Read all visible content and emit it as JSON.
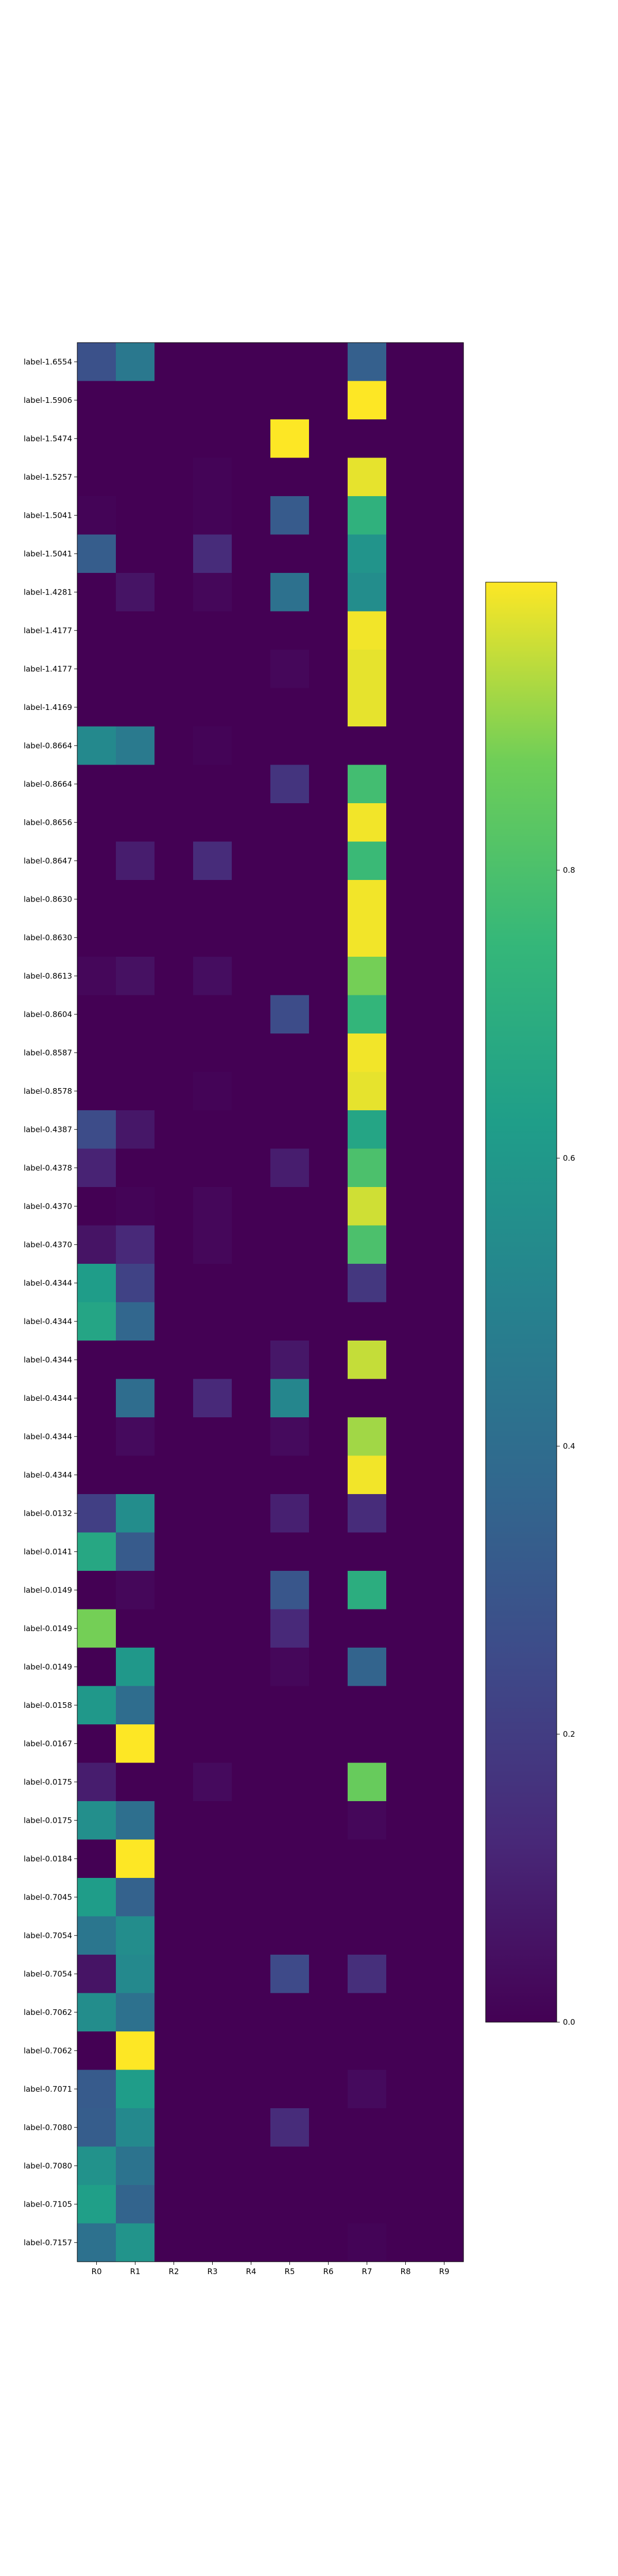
{
  "chart_data": {
    "type": "heatmap",
    "title": "",
    "xlabel": "",
    "ylabel": "",
    "columns": [
      "R0",
      "R1",
      "R2",
      "R3",
      "R4",
      "R5",
      "R6",
      "R7",
      "R8",
      "R9"
    ],
    "rows": [
      "label-1.6554",
      "label-1.5906",
      "label-1.5474",
      "label-1.5257",
      "label-1.5041",
      "label-1.5041",
      "label-1.4281",
      "label-1.4177",
      "label-1.4177",
      "label-1.4169",
      "label-0.8664",
      "label-0.8664",
      "label-0.8656",
      "label-0.8647",
      "label-0.8630",
      "label-0.8630",
      "label-0.8613",
      "label-0.8604",
      "label-0.8587",
      "label-0.8578",
      "label-0.4387",
      "label-0.4378",
      "label-0.4370",
      "label-0.4370",
      "label-0.4344",
      "label-0.4344",
      "label-0.4344",
      "label-0.4344",
      "label-0.4344",
      "label-0.4344",
      "label-0.0132",
      "label-0.0141",
      "label-0.0149",
      "label-0.0149",
      "label-0.0149",
      "label-0.0158",
      "label-0.0167",
      "label-0.0175",
      "label-0.0175",
      "label-0.0184",
      "label-0.7045",
      "label-0.7054",
      "label-0.7054",
      "label-0.7062",
      "label-0.7062",
      "label-0.7071",
      "label-0.7080",
      "label-0.7080",
      "label-0.7105",
      "label-0.7157"
    ],
    "values": [
      [
        0.28,
        0.45,
        0,
        0,
        0,
        0,
        0,
        0.34,
        0,
        0
      ],
      [
        0,
        0,
        0,
        0,
        0,
        0,
        0,
        1.0,
        0,
        0
      ],
      [
        0,
        0,
        0,
        0,
        0,
        1.0,
        0,
        0,
        0,
        0
      ],
      [
        0,
        0,
        0,
        0.01,
        0,
        0,
        0,
        0.98,
        0,
        0
      ],
      [
        0.01,
        0,
        0,
        0.01,
        0,
        0.32,
        0,
        0.72,
        0,
        0
      ],
      [
        0.33,
        0,
        0,
        0.14,
        0,
        0,
        0,
        0.58,
        0,
        0
      ],
      [
        0,
        0.06,
        0,
        0.02,
        0,
        0.42,
        0,
        0.55,
        0,
        0
      ],
      [
        0,
        0,
        0,
        0,
        0,
        0,
        0,
        0.99,
        0,
        0
      ],
      [
        0,
        0,
        0,
        0,
        0,
        0.02,
        0,
        0.98,
        0,
        0
      ],
      [
        0,
        0,
        0,
        0,
        0,
        0,
        0,
        0.98,
        0,
        0
      ],
      [
        0.53,
        0.46,
        0,
        0.01,
        0,
        0,
        0,
        0,
        0,
        0
      ],
      [
        0,
        0,
        0,
        0,
        0,
        0.17,
        0,
        0.78,
        0,
        0
      ],
      [
        0,
        0,
        0,
        0,
        0,
        0,
        0,
        0.99,
        0,
        0
      ],
      [
        0,
        0.09,
        0,
        0.14,
        0,
        0,
        0,
        0.76,
        0,
        0
      ],
      [
        0,
        0,
        0,
        0,
        0,
        0,
        0,
        0.99,
        0,
        0
      ],
      [
        0,
        0,
        0,
        0,
        0,
        0,
        0,
        0.99,
        0,
        0
      ],
      [
        0.02,
        0.05,
        0,
        0.04,
        0,
        0,
        0,
        0.88,
        0,
        0
      ],
      [
        0,
        0,
        0,
        0,
        0,
        0.26,
        0,
        0.74,
        0,
        0
      ],
      [
        0,
        0,
        0,
        0,
        0,
        0,
        0,
        0.99,
        0,
        0
      ],
      [
        0,
        0,
        0,
        0.01,
        0,
        0,
        0,
        0.98,
        0,
        0
      ],
      [
        0.26,
        0.07,
        0,
        0,
        0,
        0,
        0,
        0.66,
        0,
        0
      ],
      [
        0.11,
        0,
        0,
        0,
        0,
        0.09,
        0,
        0.8,
        0,
        0
      ],
      [
        0,
        0.01,
        0,
        0.02,
        0,
        0,
        0,
        0.96,
        0,
        0
      ],
      [
        0.06,
        0.13,
        0,
        0.02,
        0,
        0,
        0,
        0.8,
        0,
        0
      ],
      [
        0.62,
        0.22,
        0,
        0,
        0,
        0,
        0,
        0.18,
        0,
        0
      ],
      [
        0.66,
        0.37,
        0,
        0,
        0,
        0,
        0,
        0,
        0,
        0
      ],
      [
        0,
        0,
        0,
        0,
        0,
        0.07,
        0,
        0.95,
        0,
        0
      ],
      [
        0,
        0.4,
        0,
        0.13,
        0,
        0.52,
        0,
        0,
        0,
        0
      ],
      [
        0,
        0.03,
        0,
        0,
        0,
        0.03,
        0,
        0.92,
        0,
        0
      ],
      [
        0,
        0,
        0,
        0,
        0,
        0,
        0,
        0.99,
        0,
        0
      ],
      [
        0.21,
        0.55,
        0,
        0,
        0,
        0.1,
        0,
        0.14,
        0,
        0
      ],
      [
        0.67,
        0.32,
        0,
        0,
        0,
        0,
        0,
        0,
        0,
        0
      ],
      [
        0,
        0.02,
        0,
        0,
        0,
        0.3,
        0,
        0.7,
        0,
        0
      ],
      [
        0.88,
        0,
        0,
        0,
        0,
        0.13,
        0,
        0,
        0,
        0
      ],
      [
        0,
        0.6,
        0,
        0,
        0,
        0.02,
        0,
        0.36,
        0,
        0
      ],
      [
        0.6,
        0.4,
        0,
        0,
        0,
        0,
        0,
        0,
        0,
        0
      ],
      [
        0,
        1.0,
        0,
        0,
        0,
        0,
        0,
        0,
        0,
        0
      ],
      [
        0.09,
        0,
        0,
        0.03,
        0,
        0,
        0,
        0.86,
        0,
        0
      ],
      [
        0.56,
        0.41,
        0,
        0,
        0,
        0,
        0,
        0.02,
        0,
        0
      ],
      [
        0,
        1.0,
        0,
        0,
        0,
        0,
        0,
        0,
        0,
        0
      ],
      [
        0.62,
        0.35,
        0,
        0,
        0,
        0,
        0,
        0,
        0,
        0
      ],
      [
        0.44,
        0.55,
        0,
        0,
        0,
        0,
        0,
        0,
        0,
        0
      ],
      [
        0.06,
        0.53,
        0,
        0,
        0,
        0.25,
        0,
        0.15,
        0,
        0
      ],
      [
        0.55,
        0.42,
        0,
        0,
        0,
        0,
        0,
        0,
        0,
        0
      ],
      [
        0,
        1.0,
        0,
        0,
        0,
        0,
        0,
        0,
        0,
        0
      ],
      [
        0.32,
        0.62,
        0,
        0,
        0,
        0,
        0,
        0.03,
        0,
        0
      ],
      [
        0.33,
        0.53,
        0,
        0,
        0,
        0.14,
        0,
        0,
        0,
        0
      ],
      [
        0.57,
        0.43,
        0,
        0,
        0,
        0,
        0,
        0,
        0,
        0
      ],
      [
        0.63,
        0.36,
        0,
        0,
        0,
        0,
        0,
        0,
        0,
        0
      ],
      [
        0.42,
        0.58,
        0,
        0,
        0,
        0,
        0,
        0.01,
        0,
        0
      ]
    ],
    "colormap": "viridis",
    "colorbar": {
      "range": [
        0,
        1.0
      ],
      "ticks": [
        "0.0",
        "0.2",
        "0.4",
        "0.6",
        "0.8"
      ]
    }
  }
}
